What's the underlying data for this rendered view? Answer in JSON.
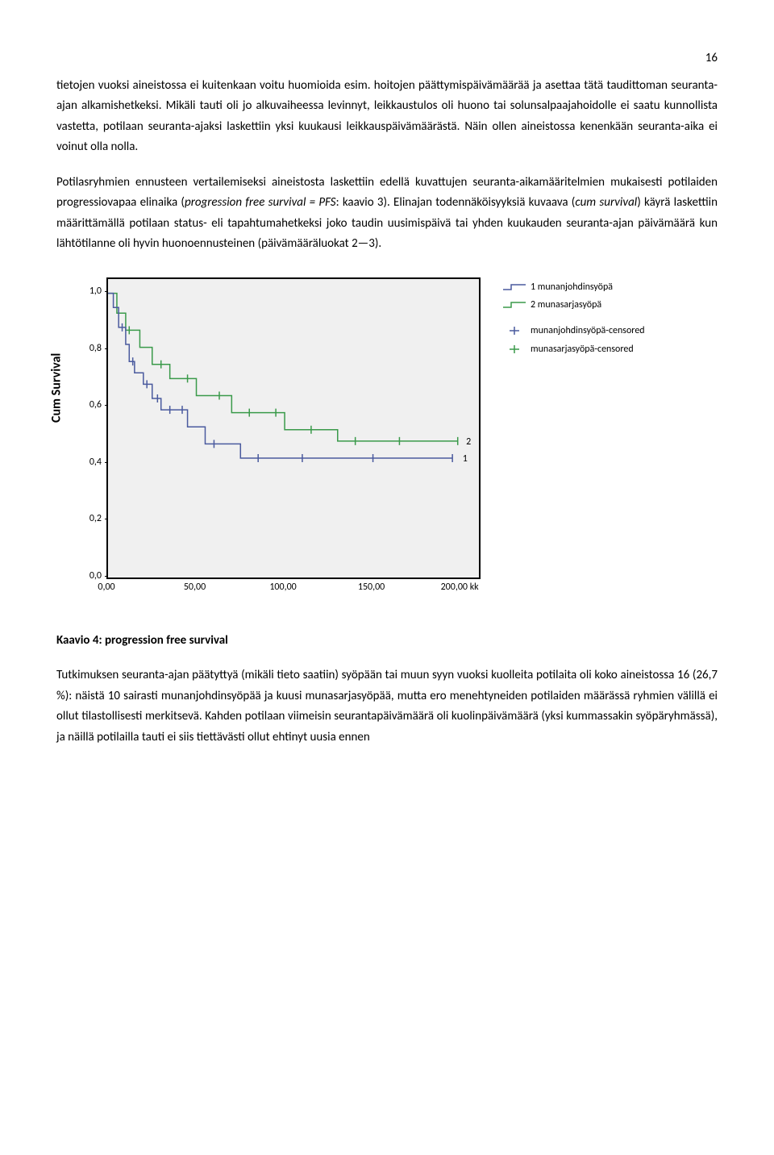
{
  "page_number": "16",
  "para1_a": "tietojen vuoksi aineistossa ei kuitenkaan voitu huomioida esim. hoitojen päättymispäivämäärää ja asettaa tätä taudittoman seuranta-ajan alkamishetkeksi. Mikäli tauti oli jo alkuvaiheessa levinnyt, leikkaustulos oli huono tai solunsalpaajahoidolle ei saatu kunnollista vastetta, potilaan seuranta-ajaksi laskettiin yksi kuukausi leikkauspäivämäärästä. Näin ollen aineistossa kenenkään seuranta-aika ei voinut olla nolla.",
  "para2_a": "Potilasryhmien ennusteen vertailemiseksi aineistosta laskettiin edellä kuvattujen seuranta-aikamääritelmien mukaisesti potilaiden progressiovapaa elinaika (",
  "para2_b": "progression free survival = PFS",
  "para2_c": ": kaavio 3). Elinajan todennäköisyyksiä kuvaava (",
  "para2_d": "cum survival",
  "para2_e": ") käyrä laskettiin määrittämällä potilaan status- eli tapahtumahetkeksi joko taudin uusimispäivä tai yhden kuukauden seuranta-ajan päivämäärä kun lähtötilanne oli hyvin huonoennusteinen (päivämääräluokat 2—3).",
  "chart": {
    "type": "kaplan-meier",
    "y_label": "Cum Survival",
    "x_values": [
      0,
      50,
      100,
      150,
      200
    ],
    "x_labels": [
      "0,00",
      "50,00",
      "100,00",
      "150,00",
      "200,00 kk"
    ],
    "y_values": [
      0.0,
      0.2,
      0.4,
      0.6,
      0.8,
      1.0
    ],
    "y_labels": [
      "0,0",
      "0,2",
      "0,4",
      "0,6",
      "0,8",
      "1,0"
    ],
    "xlim": [
      0,
      210
    ],
    "ylim": [
      0,
      1.05
    ],
    "background_color": "#f0f0f0",
    "border_color": "#000000",
    "series1": {
      "label": "1 munanjohdinsyöpä",
      "color": "#4a5a9e",
      "steps": [
        [
          0,
          1.0
        ],
        [
          3,
          1.0
        ],
        [
          3,
          0.95
        ],
        [
          6,
          0.95
        ],
        [
          6,
          0.88
        ],
        [
          10,
          0.88
        ],
        [
          10,
          0.82
        ],
        [
          12,
          0.82
        ],
        [
          12,
          0.76
        ],
        [
          15,
          0.76
        ],
        [
          15,
          0.72
        ],
        [
          20,
          0.72
        ],
        [
          20,
          0.68
        ],
        [
          25,
          0.68
        ],
        [
          25,
          0.63
        ],
        [
          30,
          0.63
        ],
        [
          30,
          0.59
        ],
        [
          45,
          0.59
        ],
        [
          45,
          0.53
        ],
        [
          55,
          0.53
        ],
        [
          55,
          0.47
        ],
        [
          75,
          0.47
        ],
        [
          75,
          0.42
        ],
        [
          90,
          0.42
        ],
        [
          90,
          0.42
        ],
        [
          195,
          0.42
        ]
      ],
      "censored_x": [
        8,
        14,
        22,
        28,
        35,
        42,
        60,
        85,
        110,
        150,
        195
      ],
      "end_label": "1",
      "end_x": 198,
      "end_y": 0.42
    },
    "series2": {
      "label": "2 munasarjasyöpä",
      "color": "#3a9a4a",
      "steps": [
        [
          0,
          1.0
        ],
        [
          5,
          1.0
        ],
        [
          5,
          0.93
        ],
        [
          10,
          0.93
        ],
        [
          10,
          0.87
        ],
        [
          18,
          0.87
        ],
        [
          18,
          0.81
        ],
        [
          25,
          0.81
        ],
        [
          25,
          0.75
        ],
        [
          35,
          0.75
        ],
        [
          35,
          0.7
        ],
        [
          50,
          0.7
        ],
        [
          50,
          0.64
        ],
        [
          70,
          0.64
        ],
        [
          70,
          0.58
        ],
        [
          100,
          0.58
        ],
        [
          100,
          0.52
        ],
        [
          130,
          0.52
        ],
        [
          130,
          0.48
        ],
        [
          198,
          0.48
        ]
      ],
      "censored_x": [
        12,
        30,
        45,
        63,
        80,
        95,
        115,
        140,
        165,
        198
      ],
      "end_label": "2",
      "end_x": 200,
      "end_y": 0.48
    },
    "legend": {
      "l1": "1 munanjohdinsyöpä",
      "l2": "2 munasarjasyöpä",
      "l3": "munanjohdinsyöpä-censored",
      "l4": "munasarjasyöpä-censored"
    }
  },
  "caption": "Kaavio 4: progression free survival",
  "para3": "Tutkimuksen seuranta-ajan päätyttyä (mikäli tieto saatiin) syöpään tai muun syyn vuoksi kuolleita potilaita oli koko aineistossa 16 (26,7 %): näistä 10 sairasti munanjohdinsyöpää ja kuusi munasarjasyöpää, mutta ero menehtyneiden potilaiden määrässä ryhmien välillä ei ollut tilastollisesti merkitsevä. Kahden potilaan viimeisin seurantapäivämäärä oli kuolinpäivämäärä (yksi kummassakin syöpäryhmässä), ja näillä potilailla tauti ei siis tiettävästi ollut ehtinyt uusia ennen"
}
